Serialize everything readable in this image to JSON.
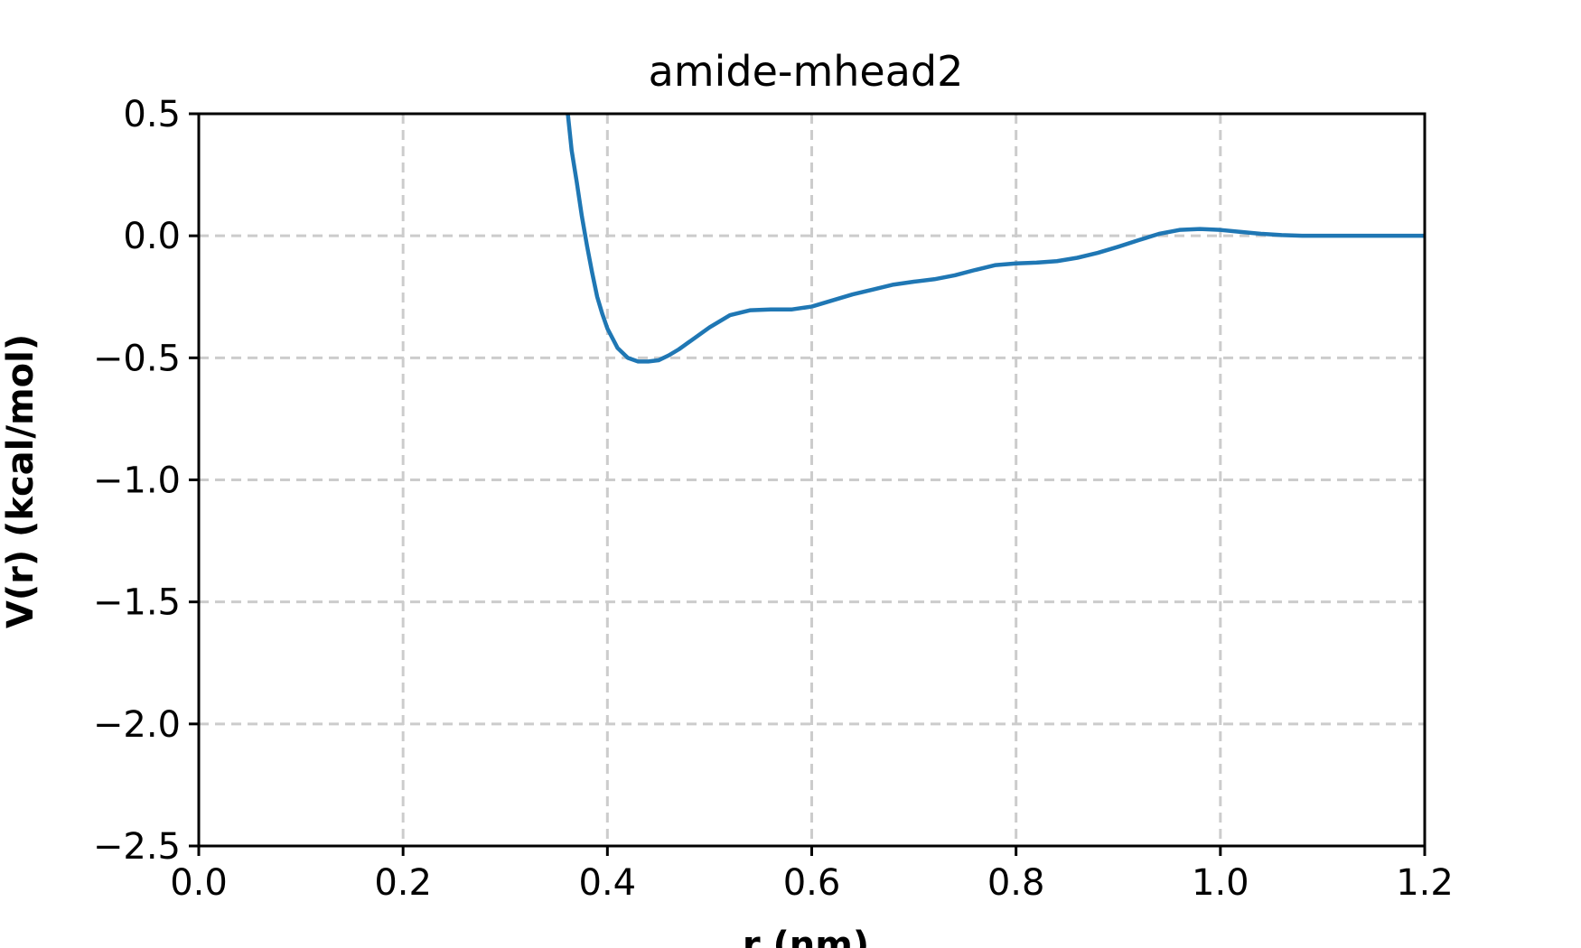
{
  "chart_data": {
    "type": "line",
    "title": "amide-mhead2",
    "xlabel": "r (nm)",
    "ylabel": "V(r) (kcal/mol)",
    "xlim": [
      0.0,
      1.2
    ],
    "ylim": [
      -2.5,
      0.5
    ],
    "x_ticks": [
      0.0,
      0.2,
      0.4,
      0.6,
      0.8,
      1.0,
      1.2
    ],
    "x_tick_labels": [
      "0.0",
      "0.2",
      "0.4",
      "0.6",
      "0.8",
      "1.0",
      "1.2"
    ],
    "y_ticks": [
      0.5,
      0.0,
      -0.5,
      -1.0,
      -1.5,
      -2.0,
      -2.5
    ],
    "y_tick_labels": [
      "0.5",
      "0.0",
      "−0.5",
      "−1.0",
      "−1.5",
      "−2.0",
      "−2.5"
    ],
    "grid": true,
    "grid_style": "dashed",
    "series": [
      {
        "color": "#1f77b4",
        "x": [
          0.36,
          0.3625,
          0.365,
          0.37,
          0.375,
          0.38,
          0.385,
          0.39,
          0.395,
          0.4,
          0.41,
          0.42,
          0.43,
          0.44,
          0.45,
          0.46,
          0.47,
          0.48,
          0.49,
          0.5,
          0.52,
          0.54,
          0.56,
          0.58,
          0.6,
          0.62,
          0.64,
          0.66,
          0.68,
          0.7,
          0.72,
          0.74,
          0.76,
          0.78,
          0.8,
          0.82,
          0.84,
          0.86,
          0.88,
          0.9,
          0.92,
          0.94,
          0.96,
          0.98,
          1.0,
          1.02,
          1.04,
          1.06,
          1.08,
          1.1,
          1.12,
          1.14,
          1.16,
          1.18,
          1.2
        ],
        "y": [
          0.55,
          0.45,
          0.35,
          0.22,
          0.08,
          -0.04,
          -0.15,
          -0.25,
          -0.32,
          -0.38,
          -0.46,
          -0.5,
          -0.515,
          -0.515,
          -0.51,
          -0.49,
          -0.465,
          -0.435,
          -0.405,
          -0.375,
          -0.325,
          -0.305,
          -0.302,
          -0.302,
          -0.29,
          -0.265,
          -0.24,
          -0.22,
          -0.2,
          -0.188,
          -0.178,
          -0.162,
          -0.14,
          -0.12,
          -0.113,
          -0.11,
          -0.104,
          -0.09,
          -0.07,
          -0.045,
          -0.018,
          0.008,
          0.024,
          0.028,
          0.024,
          0.016,
          0.008,
          0.003,
          0.0,
          0.0,
          0.0,
          0.0,
          0.0,
          0.0,
          0.0
        ]
      }
    ]
  }
}
